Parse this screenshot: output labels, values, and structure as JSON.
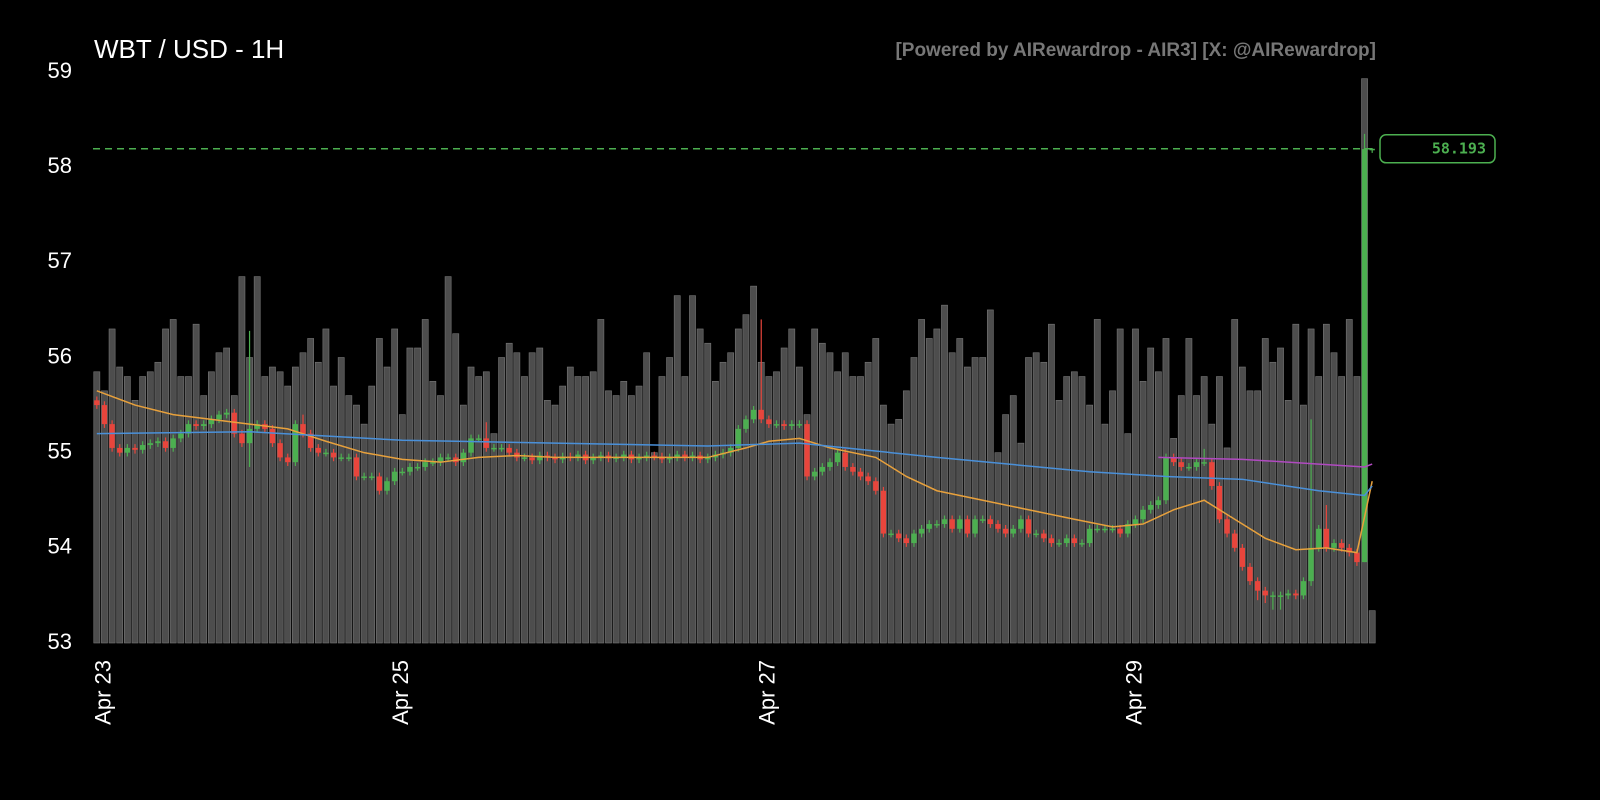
{
  "chart_data": {
    "type": "candlestick",
    "title": "WBT / USD - 1H",
    "subtitle": "[Powered by AIRewardrop - AIR3] [X: @AIRewardrop]",
    "open": [
      55.55,
      55.5,
      55.3,
      55.05,
      55.0,
      55.05,
      55.03,
      55.08,
      55.1,
      55.12,
      55.05,
      55.15,
      55.2,
      55.3,
      55.28,
      55.3,
      55.35,
      55.4,
      55.42,
      55.2,
      55.1,
      55.25,
      55.3,
      55.25,
      55.1,
      54.95,
      54.9,
      55.3,
      55.2,
      55.05,
      55.0,
      55.0,
      54.95,
      54.95,
      54.95,
      54.75,
      54.75,
      54.75,
      54.6,
      54.7,
      54.8,
      54.8,
      54.85,
      54.85,
      54.9,
      54.9,
      54.95,
      54.95,
      54.9,
      55.0,
      55.15,
      55.15,
      55.05,
      55.05,
      55.05,
      55.0,
      54.95,
      54.95,
      54.92,
      54.97,
      54.95,
      54.93,
      54.96,
      54.95,
      54.98,
      54.92,
      54.95,
      54.97,
      54.94,
      54.95,
      54.98,
      54.93,
      54.95,
      54.97,
      54.96,
      54.93,
      54.95,
      54.98,
      54.95,
      54.97,
      54.93,
      54.95,
      54.98,
      55.0,
      55.05,
      55.25,
      55.35,
      55.45,
      55.35,
      55.3,
      55.3,
      55.28,
      55.3,
      55.3,
      54.75,
      54.8,
      54.85,
      54.9,
      55.0,
      54.85,
      54.8,
      54.75,
      54.7,
      54.6,
      54.15,
      54.15,
      54.1,
      54.05,
      54.15,
      54.2,
      54.25,
      54.25,
      54.3,
      54.2,
      54.3,
      54.15,
      54.3,
      54.3,
      54.25,
      54.2,
      54.15,
      54.2,
      54.3,
      54.15,
      54.15,
      54.1,
      54.05,
      54.05,
      54.1,
      54.05,
      54.05,
      54.2,
      54.2,
      54.2,
      54.2,
      54.15,
      54.25,
      54.3,
      54.4,
      54.45,
      54.5,
      54.95,
      54.9,
      54.85,
      54.85,
      54.9,
      54.9,
      54.65,
      54.3,
      54.15,
      54.0,
      53.8,
      53.65,
      53.55,
      53.5,
      53.5,
      53.5,
      53.52,
      53.5,
      53.65,
      54.0,
      54.2,
      54.0,
      54.05,
      54.0,
      53.95,
      53.85,
      58.19
    ],
    "high": [
      55.59,
      55.54,
      55.34,
      55.09,
      55.09,
      55.09,
      55.12,
      55.14,
      55.16,
      55.16,
      55.19,
      55.24,
      55.34,
      55.34,
      55.34,
      55.39,
      55.44,
      55.46,
      55.46,
      55.24,
      56.28,
      55.34,
      55.34,
      55.29,
      55.14,
      54.99,
      55.34,
      55.4,
      55.24,
      55.09,
      55.04,
      55.04,
      54.99,
      54.99,
      54.99,
      54.79,
      54.79,
      54.79,
      54.74,
      54.84,
      54.84,
      54.89,
      54.89,
      54.94,
      54.94,
      54.99,
      54.99,
      54.99,
      55.04,
      55.19,
      55.19,
      55.32,
      55.09,
      55.09,
      55.09,
      55.04,
      54.99,
      54.99,
      55.01,
      55.01,
      54.99,
      55.0,
      55.0,
      55.02,
      55.02,
      54.99,
      55.01,
      55.01,
      54.99,
      55.02,
      55.02,
      54.99,
      55.01,
      55.01,
      55.0,
      54.99,
      55.02,
      55.02,
      55.01,
      55.01,
      54.99,
      55.02,
      55.04,
      55.09,
      55.29,
      55.39,
      55.49,
      56.4,
      55.39,
      55.34,
      55.34,
      55.34,
      55.34,
      55.34,
      54.84,
      54.89,
      54.94,
      55.04,
      55.04,
      54.89,
      54.84,
      54.79,
      54.74,
      54.64,
      54.19,
      54.19,
      54.14,
      54.19,
      54.24,
      54.29,
      54.29,
      54.34,
      54.34,
      54.34,
      54.34,
      54.34,
      54.34,
      54.34,
      54.29,
      54.24,
      54.24,
      54.34,
      54.34,
      54.19,
      54.19,
      54.14,
      54.09,
      54.14,
      54.14,
      54.09,
      54.24,
      54.24,
      54.24,
      54.24,
      54.24,
      54.29,
      54.34,
      54.44,
      54.49,
      54.54,
      54.99,
      54.99,
      54.94,
      54.89,
      54.94,
      55.04,
      54.94,
      54.69,
      54.34,
      54.19,
      54.04,
      53.84,
      53.69,
      53.59,
      53.54,
      53.54,
      53.56,
      53.56,
      53.69,
      55.35,
      54.24,
      54.45,
      54.09,
      54.09,
      54.04,
      53.99,
      58.35,
      58.2
    ],
    "low": [
      55.46,
      55.26,
      55.01,
      54.96,
      54.96,
      54.99,
      54.99,
      55.04,
      55.06,
      55.01,
      55.01,
      55.11,
      55.16,
      55.24,
      55.24,
      55.26,
      55.31,
      55.36,
      55.16,
      55.06,
      54.85,
      55.21,
      55.21,
      55.06,
      54.91,
      54.86,
      54.86,
      55.16,
      55.01,
      54.96,
      54.96,
      54.91,
      54.91,
      54.91,
      54.71,
      54.71,
      54.71,
      54.56,
      54.56,
      54.66,
      54.76,
      54.76,
      54.81,
      54.81,
      54.86,
      54.86,
      54.91,
      54.86,
      54.86,
      54.96,
      55.11,
      55.01,
      55.01,
      55.01,
      54.96,
      54.91,
      54.91,
      54.88,
      54.88,
      54.91,
      54.89,
      54.89,
      54.91,
      54.91,
      54.88,
      54.88,
      54.91,
      54.9,
      54.9,
      54.91,
      54.89,
      54.89,
      54.91,
      54.92,
      54.89,
      54.89,
      54.91,
      54.91,
      54.91,
      54.89,
      54.89,
      54.91,
      54.94,
      54.96,
      55.01,
      55.21,
      55.31,
      55.31,
      55.26,
      55.26,
      55.24,
      55.24,
      55.26,
      54.71,
      54.71,
      54.76,
      54.81,
      54.86,
      54.81,
      54.76,
      54.71,
      54.66,
      54.56,
      54.11,
      54.11,
      54.06,
      54.01,
      54.01,
      54.11,
      54.16,
      54.21,
      54.21,
      54.16,
      54.16,
      54.11,
      54.11,
      54.26,
      54.21,
      54.16,
      54.11,
      54.11,
      54.16,
      54.11,
      54.11,
      54.06,
      54.01,
      54.01,
      54.01,
      54.01,
      54.01,
      54.01,
      54.16,
      54.16,
      54.16,
      54.11,
      54.11,
      54.21,
      54.26,
      54.36,
      54.41,
      54.46,
      54.86,
      54.81,
      54.81,
      54.81,
      54.86,
      54.61,
      54.26,
      54.11,
      53.96,
      53.76,
      53.61,
      53.45,
      53.42,
      53.35,
      53.35,
      53.46,
      53.46,
      53.46,
      53.6,
      53.96,
      53.96,
      53.96,
      53.96,
      53.91,
      53.81,
      53.85,
      58.15
    ],
    "close": [
      55.5,
      55.3,
      55.05,
      55.0,
      55.05,
      55.03,
      55.08,
      55.1,
      55.12,
      55.05,
      55.15,
      55.2,
      55.3,
      55.28,
      55.3,
      55.35,
      55.4,
      55.42,
      55.2,
      55.1,
      55.25,
      55.3,
      55.25,
      55.1,
      54.95,
      54.9,
      55.3,
      55.2,
      55.05,
      55.0,
      55.0,
      54.95,
      54.95,
      54.95,
      54.75,
      54.75,
      54.75,
      54.6,
      54.7,
      54.8,
      54.8,
      54.85,
      54.85,
      54.9,
      54.9,
      54.95,
      54.95,
      54.9,
      55.0,
      55.15,
      55.15,
      55.05,
      55.05,
      55.05,
      55.0,
      54.95,
      54.95,
      54.92,
      54.97,
      54.95,
      54.93,
      54.96,
      54.95,
      54.98,
      54.92,
      54.95,
      54.97,
      54.94,
      54.95,
      54.98,
      54.93,
      54.95,
      54.97,
      54.96,
      54.93,
      54.95,
      54.98,
      54.95,
      54.97,
      54.93,
      54.95,
      54.98,
      55.0,
      55.05,
      55.25,
      55.35,
      55.45,
      55.35,
      55.3,
      55.3,
      55.28,
      55.3,
      55.3,
      54.75,
      54.8,
      54.85,
      54.9,
      55.0,
      54.85,
      54.8,
      54.75,
      54.7,
      54.6,
      54.15,
      54.15,
      54.1,
      54.05,
      54.15,
      54.2,
      54.25,
      54.25,
      54.3,
      54.2,
      54.3,
      54.15,
      54.3,
      54.3,
      54.25,
      54.2,
      54.15,
      54.2,
      54.3,
      54.15,
      54.15,
      54.1,
      54.05,
      54.05,
      54.1,
      54.05,
      54.05,
      54.2,
      54.2,
      54.2,
      54.2,
      54.15,
      54.25,
      54.3,
      54.4,
      54.45,
      54.5,
      54.95,
      54.9,
      54.85,
      54.85,
      54.9,
      54.9,
      54.65,
      54.3,
      54.15,
      54.0,
      53.8,
      53.65,
      53.55,
      53.5,
      53.5,
      53.5,
      53.52,
      53.5,
      53.65,
      54.0,
      54.2,
      54.0,
      54.05,
      54.0,
      53.95,
      53.85,
      58.19,
      58.193
    ],
    "volume": [
      2.85,
      2.65,
      3.3,
      2.9,
      2.8,
      2.55,
      2.8,
      2.85,
      2.95,
      3.3,
      3.4,
      2.8,
      2.8,
      3.35,
      2.6,
      2.85,
      3.05,
      3.1,
      2.6,
      3.85,
      3.0,
      3.85,
      2.8,
      2.9,
      2.85,
      2.7,
      2.9,
      3.05,
      3.2,
      2.95,
      3.3,
      2.7,
      3.0,
      2.6,
      2.5,
      2.3,
      2.7,
      3.2,
      2.9,
      3.3,
      2.4,
      3.1,
      3.1,
      3.4,
      2.75,
      2.6,
      3.85,
      3.25,
      2.5,
      2.9,
      2.8,
      2.85,
      2.2,
      3.0,
      3.15,
      3.05,
      2.8,
      3.05,
      3.1,
      2.55,
      2.5,
      2.7,
      2.9,
      2.8,
      2.8,
      2.85,
      3.4,
      2.65,
      2.6,
      2.75,
      2.6,
      2.7,
      3.05,
      2.0,
      2.8,
      3.0,
      3.65,
      2.8,
      3.65,
      3.3,
      3.15,
      2.75,
      2.95,
      3.05,
      3.3,
      3.45,
      3.75,
      2.95,
      2.8,
      2.85,
      3.1,
      3.3,
      2.9,
      2.4,
      3.3,
      3.15,
      3.05,
      2.85,
      3.05,
      2.8,
      2.8,
      2.95,
      3.2,
      2.5,
      2.3,
      2.35,
      2.65,
      3.0,
      3.4,
      3.2,
      3.3,
      3.55,
      3.05,
      3.2,
      2.9,
      3.0,
      3.0,
      3.5,
      2.0,
      2.4,
      2.6,
      2.1,
      3.0,
      3.05,
      2.95,
      3.35,
      2.55,
      2.8,
      2.85,
      2.8,
      2.5,
      3.4,
      2.3,
      2.65,
      3.3,
      2.2,
      3.3,
      2.75,
      3.1,
      2.85,
      3.2,
      2.15,
      2.6,
      3.2,
      2.6,
      2.8,
      2.3,
      2.8,
      2.05,
      3.4,
      2.9,
      2.65,
      2.65,
      3.2,
      2.95,
      3.1,
      2.55,
      3.35,
      2.5,
      3.3,
      2.8,
      3.35,
      3.05,
      2.8,
      3.4,
      2.8,
      5.93,
      0.34
    ],
    "up_color": "#4caf50",
    "down_color": "#e8453c",
    "volume_color": "#4d4d4d",
    "lines": [
      {
        "x": [
          0,
          5,
          10,
          15,
          20,
          25,
          30,
          35,
          40,
          45,
          50,
          55,
          60,
          70,
          80,
          85,
          88,
          92,
          96,
          102,
          106,
          110,
          116,
          122,
          128,
          133,
          137,
          141,
          145,
          149,
          153,
          157,
          161,
          165,
          167
        ],
        "values": [
          55.65,
          55.5,
          55.4,
          55.35,
          55.3,
          55.25,
          55.12,
          55.0,
          54.93,
          54.9,
          54.95,
          54.97,
          54.95,
          54.95,
          54.95,
          55.05,
          55.12,
          55.15,
          55.05,
          54.95,
          54.75,
          54.6,
          54.5,
          54.4,
          54.3,
          54.22,
          54.25,
          54.4,
          54.5,
          54.3,
          54.1,
          53.98,
          54.0,
          53.95,
          54.7
        ],
        "color": "#e8a13c"
      },
      {
        "x": [
          0,
          20,
          40,
          60,
          80,
          92,
          110,
          130,
          140,
          150,
          160,
          166,
          167
        ],
        "values": [
          55.2,
          55.22,
          55.13,
          55.1,
          55.07,
          55.1,
          54.95,
          54.8,
          54.75,
          54.72,
          54.6,
          54.55,
          54.65
        ],
        "color": "#4a90d9"
      },
      {
        "x": [
          139,
          150,
          160,
          166,
          167
        ],
        "values": [
          54.95,
          54.93,
          54.88,
          54.85,
          54.88
        ],
        "color": "#b04ac0"
      }
    ],
    "ylim": [
      53,
      59
    ],
    "yticks": [
      53,
      54,
      55,
      56,
      57,
      58,
      59
    ],
    "xlim": [
      -0.5,
      167.5
    ],
    "xticks": [
      {
        "value": 1,
        "label": "Apr 23"
      },
      {
        "value": 40,
        "label": "Apr 25"
      },
      {
        "value": 88,
        "label": "Apr 27"
      },
      {
        "value": 136,
        "label": "Apr 29"
      }
    ],
    "last_price_color": "#4caf50"
  }
}
